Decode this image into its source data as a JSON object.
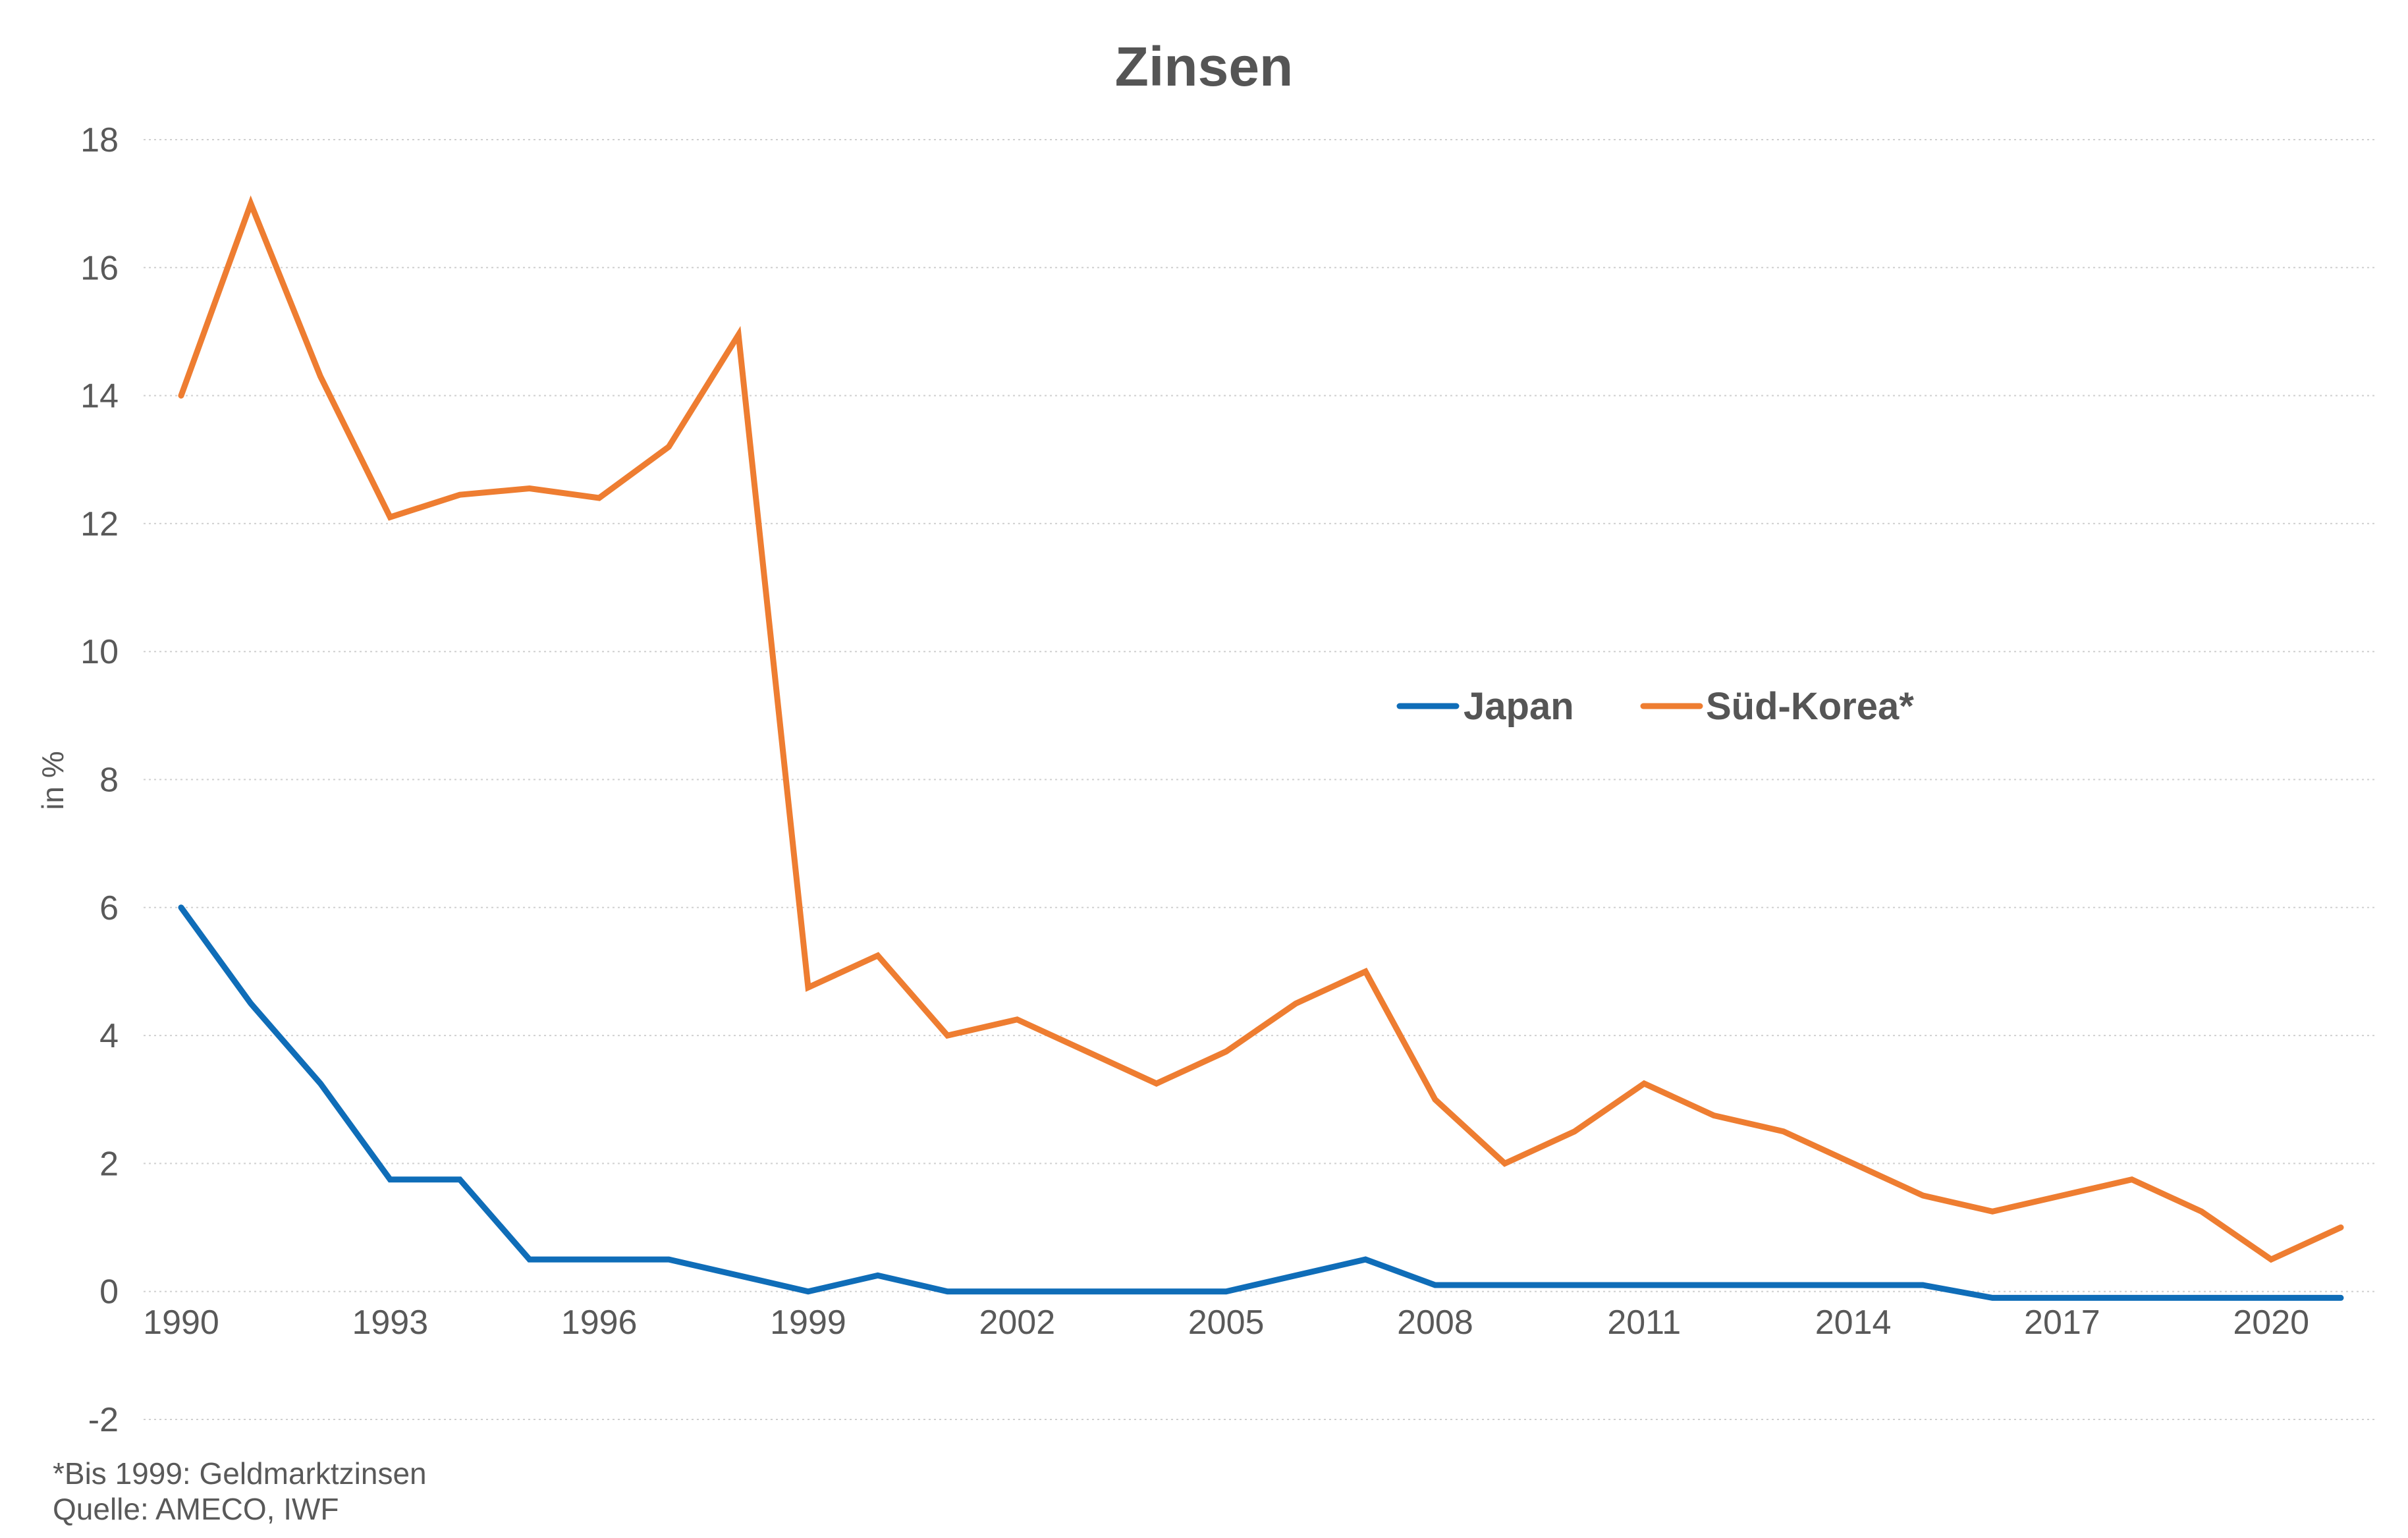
{
  "chart_data": {
    "type": "line",
    "title": "Zinsen",
    "xlabel": "",
    "ylabel": "in %",
    "ylim": [
      -2,
      18
    ],
    "yticks": [
      -2,
      0,
      2,
      4,
      6,
      8,
      10,
      12,
      14,
      16,
      18
    ],
    "xlim": [
      1990,
      2021
    ],
    "xticks": [
      1990,
      1993,
      1996,
      1999,
      2002,
      2005,
      2008,
      2011,
      2014,
      2017,
      2020
    ],
    "grid": true,
    "legend_position": "center-right",
    "x": [
      1990,
      1991,
      1992,
      1993,
      1994,
      1995,
      1996,
      1997,
      1998,
      1999,
      2000,
      2001,
      2002,
      2003,
      2004,
      2005,
      2006,
      2007,
      2008,
      2009,
      2010,
      2011,
      2012,
      2013,
      2014,
      2015,
      2016,
      2017,
      2018,
      2019,
      2020,
      2021
    ],
    "series": [
      {
        "name": "Japan",
        "color": "#0F6DB8",
        "values": [
          6.0,
          4.5,
          3.25,
          1.75,
          1.75,
          0.5,
          0.5,
          0.5,
          0.25,
          0.0,
          0.25,
          0.0,
          0.0,
          0.0,
          0.0,
          0.0,
          0.25,
          0.5,
          0.1,
          0.1,
          0.1,
          0.1,
          0.1,
          0.1,
          0.1,
          0.1,
          -0.1,
          -0.1,
          -0.1,
          -0.1,
          -0.1,
          -0.1
        ]
      },
      {
        "name": "Süd-Korea*",
        "color": "#EE7D31",
        "values": [
          14.0,
          17.0,
          14.3,
          12.1,
          12.45,
          12.55,
          12.4,
          13.2,
          14.95,
          4.75,
          5.25,
          4.0,
          4.25,
          3.75,
          3.25,
          3.75,
          4.5,
          5.0,
          3.0,
          2.0,
          2.5,
          3.25,
          2.75,
          2.5,
          2.0,
          1.5,
          1.25,
          1.5,
          1.75,
          1.25,
          0.5,
          1.0
        ]
      }
    ],
    "footnotes": [
      "*Bis 1999: Geldmarktzinsen",
      "Quelle: AMECO, IWF"
    ]
  }
}
